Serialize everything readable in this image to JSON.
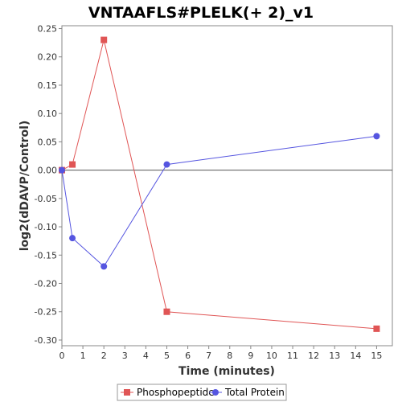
{
  "chart_data": {
    "type": "line",
    "title": "VNTAAFLS#PLELK(+ 2)_v1",
    "xlabel": "Time (minutes)",
    "ylabel": "log2(dDAVP/Control)",
    "xlim": [
      0,
      15.75
    ],
    "ylim": [
      -0.31,
      0.255
    ],
    "xticks": [
      0,
      1,
      2,
      3,
      4,
      5,
      6,
      7,
      8,
      9,
      10,
      11,
      12,
      13,
      14,
      15
    ],
    "yticks": [
      0.25,
      0.2,
      0.15,
      0.1,
      0.05,
      0.0,
      -0.05,
      -0.1,
      -0.15,
      -0.2,
      -0.25,
      -0.3
    ],
    "ytick_labels": [
      "0.25",
      "0.20",
      "0.15",
      "0.10",
      "0.05",
      "0.00",
      "-0.05",
      "-0.10",
      "-0.15",
      "-0.20",
      "-0.25",
      "-0.30"
    ],
    "grid": false,
    "zero_line": true,
    "legend_position": "bottom",
    "series": [
      {
        "name": "Phosphopeptide",
        "marker": "square",
        "color": "#e05555",
        "x": [
          0,
          0.5,
          2,
          5,
          15
        ],
        "y": [
          0.0,
          0.01,
          0.23,
          -0.25,
          -0.28
        ]
      },
      {
        "name": "Total Protein",
        "marker": "circle",
        "color": "#5555e0",
        "x": [
          0,
          0.5,
          2,
          5,
          15
        ],
        "y": [
          0.0,
          -0.12,
          -0.17,
          0.01,
          0.06
        ]
      }
    ]
  }
}
